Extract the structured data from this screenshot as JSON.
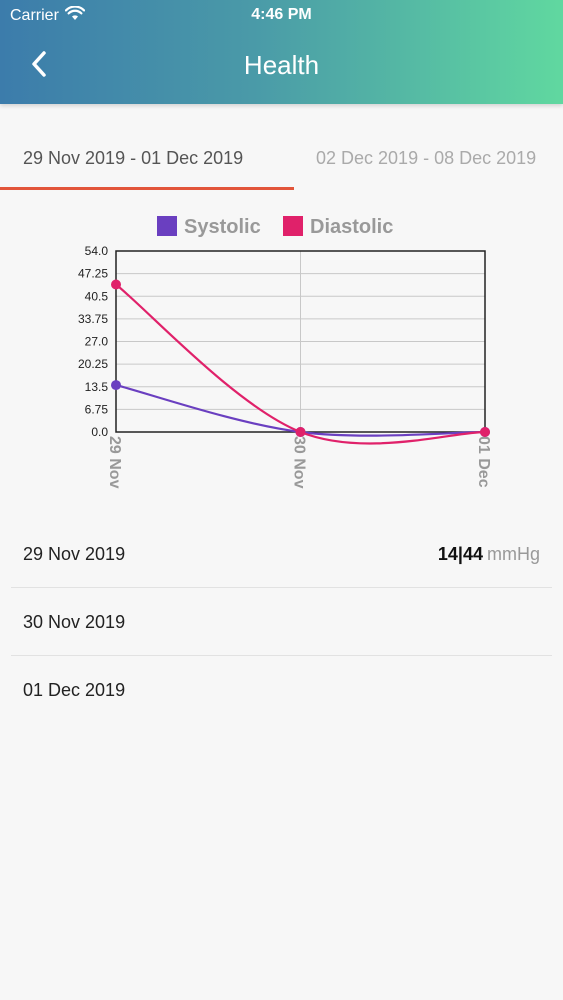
{
  "status": {
    "carrier": "Carrier",
    "time": "4:46 PM"
  },
  "header": {
    "title": "Health"
  },
  "tabs": [
    {
      "label": "29 Nov 2019 - 01 Dec 2019",
      "active": true
    },
    {
      "label": "02 Dec 2019 - 08 Dec 2019",
      "active": false
    }
  ],
  "colors": {
    "accent": "#e2553a",
    "systolic": "#6a3fc0",
    "diastolic": "#e0216a"
  },
  "chart_data": {
    "type": "line",
    "categories": [
      "29 Nov",
      "30 Nov",
      "01 Dec"
    ],
    "series": [
      {
        "name": "Systolic",
        "values": [
          14,
          0,
          0
        ],
        "color": "#6a3fc0"
      },
      {
        "name": "Diastolic",
        "values": [
          44,
          0,
          0
        ],
        "color": "#e0216a"
      }
    ],
    "ylim": [
      0,
      54
    ],
    "yticks": [
      "54.0",
      "47.25",
      "40.5",
      "33.75",
      "27.0",
      "20.25",
      "13.5",
      "6.75",
      "0.0"
    ],
    "grid": true,
    "legend": "top"
  },
  "list": [
    {
      "date": "29 Nov 2019",
      "reading": "14|44",
      "unit": "mmHg"
    },
    {
      "date": "30 Nov 2019",
      "reading": "",
      "unit": ""
    },
    {
      "date": "01 Dec 2019",
      "reading": "",
      "unit": ""
    }
  ]
}
